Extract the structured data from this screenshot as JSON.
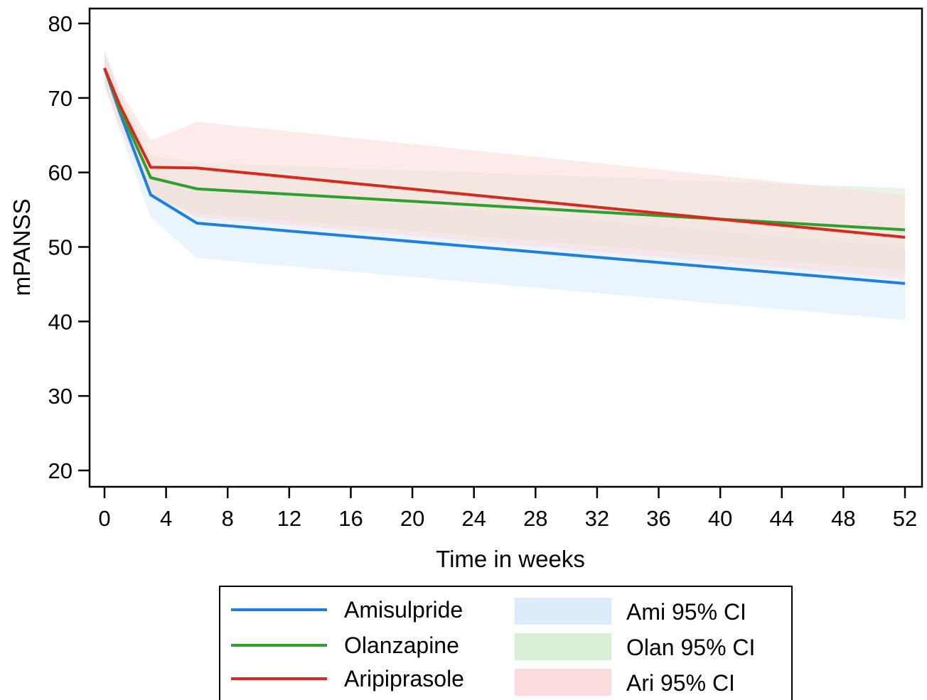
{
  "chart_data": {
    "type": "line",
    "xlabel": "Time in weeks",
    "ylabel": "mPANSS",
    "xlim": [
      0,
      52
    ],
    "ylim": [
      20,
      80
    ],
    "xticks": [
      "0",
      "4",
      "8",
      "12",
      "16",
      "20",
      "24",
      "28",
      "32",
      "36",
      "40",
      "44",
      "48",
      "52"
    ],
    "yticks": [
      "20",
      "30",
      "40",
      "50",
      "60",
      "70",
      "80"
    ],
    "grid": false,
    "legend_position": "bottom",
    "series": [
      {
        "name": "Amisulpride",
        "color": "#1f7fe0",
        "points": [
          [
            0,
            74.0
          ],
          [
            1,
            68.0
          ],
          [
            3,
            57.0
          ],
          [
            6,
            53.2
          ],
          [
            52,
            45.1
          ]
        ]
      },
      {
        "name": "Olanzapine",
        "color": "#2ea02e",
        "points": [
          [
            0,
            74.0
          ],
          [
            1,
            68.5
          ],
          [
            3,
            59.3
          ],
          [
            6,
            57.8
          ],
          [
            52,
            52.3
          ]
        ]
      },
      {
        "name": "Aripiprasole",
        "color": "#d72a1e",
        "points": [
          [
            0,
            74.0
          ],
          [
            1,
            69.0
          ],
          [
            3,
            60.7
          ],
          [
            6,
            60.6
          ],
          [
            52,
            51.3
          ]
        ]
      }
    ],
    "confidence_bands": [
      {
        "name": "Ami 95% CI",
        "color": "#dcecfb",
        "points": [
          [
            0,
            72.0,
            76.0
          ],
          [
            1,
            65.5,
            70.5
          ],
          [
            3,
            54.0,
            60.0
          ],
          [
            6,
            48.5,
            58.0
          ],
          [
            52,
            40.2,
            50.0
          ]
        ]
      },
      {
        "name": "Olan 95% CI",
        "color": "#d9efd6",
        "points": [
          [
            0,
            72.0,
            76.0
          ],
          [
            1,
            66.5,
            70.5
          ],
          [
            3,
            56.5,
            62.3
          ],
          [
            6,
            54.5,
            61.3
          ],
          [
            52,
            46.8,
            57.9
          ]
        ]
      },
      {
        "name": "Ari 95% CI",
        "color": "#fbdcdc",
        "points": [
          [
            0,
            71.5,
            76.5
          ],
          [
            1,
            66.0,
            71.0
          ],
          [
            3,
            57.2,
            64.3
          ],
          [
            6,
            54.0,
            66.8
          ],
          [
            52,
            45.8,
            57.0
          ]
        ]
      }
    ]
  }
}
